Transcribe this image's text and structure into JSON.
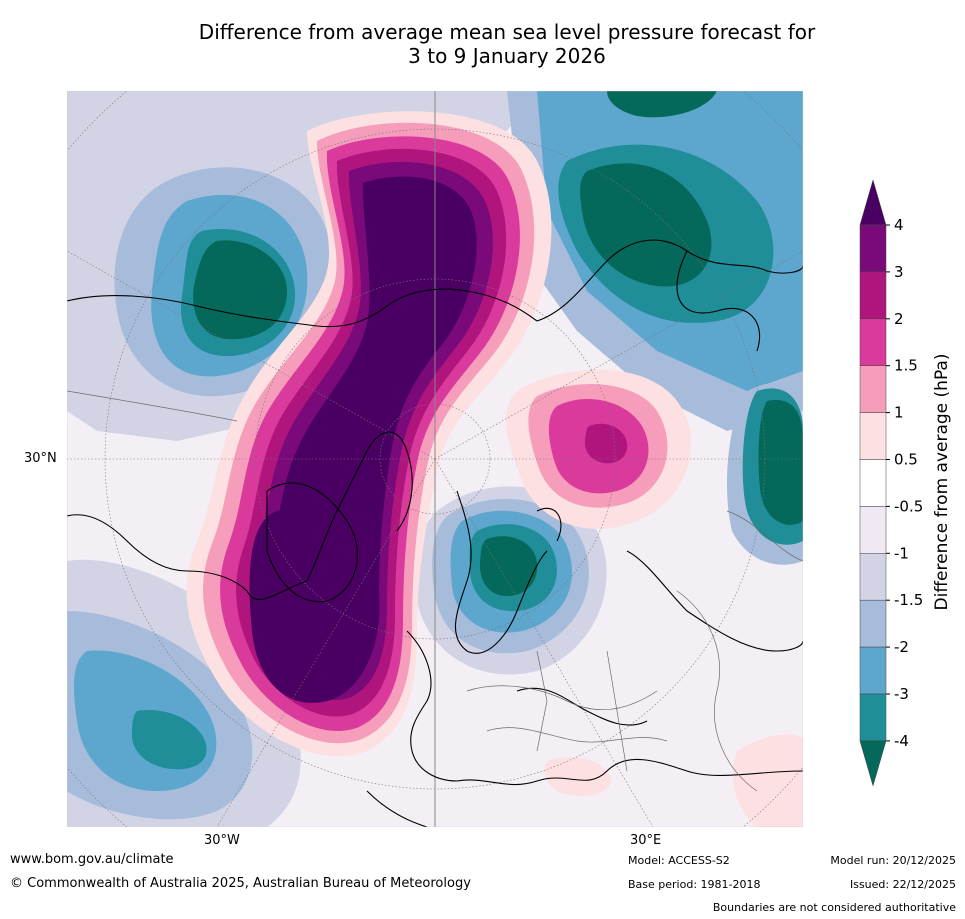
{
  "title": {
    "line1": "Difference from average mean sea level pressure forecast for",
    "line2": "3 to 9 January 2026"
  },
  "map": {
    "lat_labels": [
      "30°N"
    ],
    "lon_labels": [
      "30°W",
      "30°E"
    ]
  },
  "colorbar": {
    "label": "Difference from average (hPa)",
    "ticks": [
      "4",
      "3",
      "2",
      "1.5",
      "1",
      "0.5",
      "-0.5",
      "-1",
      "-1.5",
      "-2",
      "-3",
      "-4"
    ],
    "colors": {
      "top_extend": "#4a0062",
      "c1": "#7a0a7a",
      "c2": "#b0157e",
      "c3": "#da3a9c",
      "c4": "#f59dbb",
      "c5": "#fde0e2",
      "c6": "#ffffff",
      "c7": "#f0e8f2",
      "c8": "#d3d3e6",
      "c9": "#a6bcda",
      "c10": "#5da6cd",
      "c11": "#1f8e98",
      "bottom_extend": "#04685a"
    }
  },
  "footer": {
    "url": "www.bom.gov.au/climate",
    "copyright": "© Commonwealth of Australia 2025, Australian Bureau of Meteorology",
    "model": "Model: ACCESS-S2",
    "base_period": "Base period: 1981-2018",
    "model_run": "Model run: 20/12/2025",
    "issued": "Issued: 22/12/2025",
    "disclaimer": "Boundaries are not considered authoritative"
  }
}
